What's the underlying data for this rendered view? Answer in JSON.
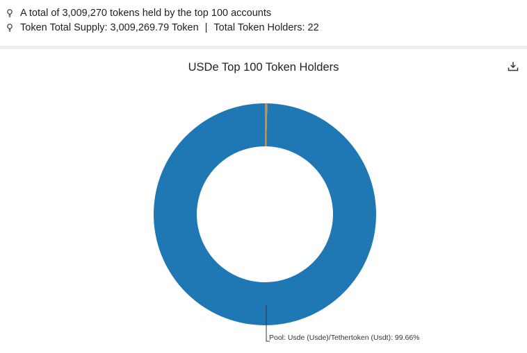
{
  "summary": {
    "line1": "A total of 3,009,270 tokens held by the top 100 accounts",
    "line2_supply_label": "Token Total Supply: 3,009,269.79 Token",
    "separator": "|",
    "line2_holders_label": "Total Token Holders: 22",
    "icon": "lightbulb-icon"
  },
  "toolbar": {
    "download_icon": "download-icon"
  },
  "chart_data": {
    "type": "pie",
    "title": "USDe Top 100 Token Holders",
    "donut": true,
    "slices": [
      {
        "label": "Pool: Usde (Usde)/Tethertoken (Usdt): 99.66%",
        "value": 99.66,
        "color": "#1f77b4"
      },
      {
        "label": "",
        "value": 0.34,
        "color": "#e08a2e"
      }
    ]
  }
}
